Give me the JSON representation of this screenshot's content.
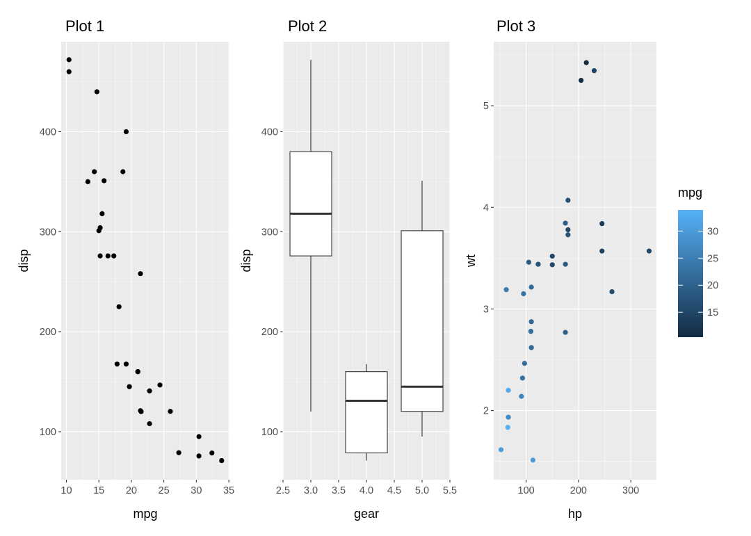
{
  "chart_data": [
    {
      "type": "scatter",
      "title": "Plot 1",
      "xlabel": "mpg",
      "ylabel": "disp",
      "xlim": [
        9.2,
        35.1
      ],
      "ylim": [
        52,
        490
      ],
      "xticks": [
        10,
        15,
        20,
        25,
        30,
        35
      ],
      "yticks": [
        100,
        200,
        300,
        400
      ],
      "color": "#000000",
      "points": [
        [
          21.0,
          160
        ],
        [
          21.0,
          160
        ],
        [
          22.8,
          108
        ],
        [
          21.4,
          258
        ],
        [
          18.7,
          360
        ],
        [
          18.1,
          225
        ],
        [
          14.3,
          360
        ],
        [
          24.4,
          146.7
        ],
        [
          22.8,
          140.8
        ],
        [
          19.2,
          167.6
        ],
        [
          17.8,
          167.6
        ],
        [
          16.4,
          275.8
        ],
        [
          17.3,
          275.8
        ],
        [
          15.2,
          275.8
        ],
        [
          10.4,
          472
        ],
        [
          10.4,
          460
        ],
        [
          14.7,
          440
        ],
        [
          32.4,
          78.7
        ],
        [
          30.4,
          75.7
        ],
        [
          33.9,
          71.1
        ],
        [
          21.5,
          120.1
        ],
        [
          15.5,
          318
        ],
        [
          15.2,
          304
        ],
        [
          13.3,
          350
        ],
        [
          19.2,
          400
        ],
        [
          27.3,
          79
        ],
        [
          26.0,
          120.3
        ],
        [
          30.4,
          95.1
        ],
        [
          15.8,
          351
        ],
        [
          19.7,
          145
        ],
        [
          15.0,
          301
        ],
        [
          21.4,
          121
        ]
      ]
    },
    {
      "type": "box",
      "title": "Plot 2",
      "xlabel": "gear",
      "ylabel": "disp",
      "xlim": [
        2.5,
        5.5
      ],
      "ylim": [
        52,
        490
      ],
      "xticks": [
        "2.5",
        "3.0",
        "3.5",
        "4.0",
        "4.5",
        "5.0",
        "5.5"
      ],
      "yticks": [
        100,
        200,
        300,
        400
      ],
      "boxes": [
        {
          "group": 3,
          "min": 120.1,
          "q1": 275.8,
          "median": 318,
          "q3": 380,
          "max": 472
        },
        {
          "group": 4,
          "min": 71.1,
          "q1": 78.8,
          "median": 130.9,
          "q3": 160,
          "max": 167.6
        },
        {
          "group": 5,
          "min": 95.1,
          "q1": 120.3,
          "median": 145,
          "q3": 301,
          "max": 351
        }
      ]
    },
    {
      "type": "scatter",
      "title": "Plot 3",
      "xlabel": "hp",
      "ylabel": "wt",
      "xlim": [
        38,
        349
      ],
      "ylim": [
        1.32,
        5.63
      ],
      "xticks": [
        100,
        200,
        300
      ],
      "yticks": [
        2,
        3,
        4,
        5
      ],
      "color_by": "mpg",
      "points": [
        {
          "hp": 110,
          "wt": 2.62,
          "mpg": 21.0
        },
        {
          "hp": 110,
          "wt": 2.875,
          "mpg": 21.0
        },
        {
          "hp": 93,
          "wt": 2.32,
          "mpg": 22.8
        },
        {
          "hp": 110,
          "wt": 3.215,
          "mpg": 21.4
        },
        {
          "hp": 175,
          "wt": 3.44,
          "mpg": 18.7
        },
        {
          "hp": 105,
          "wt": 3.46,
          "mpg": 18.1
        },
        {
          "hp": 245,
          "wt": 3.57,
          "mpg": 14.3
        },
        {
          "hp": 62,
          "wt": 3.19,
          "mpg": 24.4
        },
        {
          "hp": 95,
          "wt": 3.15,
          "mpg": 22.8
        },
        {
          "hp": 123,
          "wt": 3.44,
          "mpg": 19.2
        },
        {
          "hp": 123,
          "wt": 3.44,
          "mpg": 17.8
        },
        {
          "hp": 180,
          "wt": 4.07,
          "mpg": 16.4
        },
        {
          "hp": 180,
          "wt": 3.73,
          "mpg": 17.3
        },
        {
          "hp": 180,
          "wt": 3.78,
          "mpg": 15.2
        },
        {
          "hp": 205,
          "wt": 5.25,
          "mpg": 10.4
        },
        {
          "hp": 215,
          "wt": 5.424,
          "mpg": 10.4
        },
        {
          "hp": 230,
          "wt": 5.345,
          "mpg": 14.7
        },
        {
          "hp": 66,
          "wt": 2.2,
          "mpg": 32.4
        },
        {
          "hp": 52,
          "wt": 1.615,
          "mpg": 30.4
        },
        {
          "hp": 65,
          "wt": 1.835,
          "mpg": 33.9
        },
        {
          "hp": 97,
          "wt": 2.465,
          "mpg": 21.5
        },
        {
          "hp": 150,
          "wt": 3.52,
          "mpg": 15.5
        },
        {
          "hp": 150,
          "wt": 3.435,
          "mpg": 15.2
        },
        {
          "hp": 245,
          "wt": 3.84,
          "mpg": 13.3
        },
        {
          "hp": 175,
          "wt": 3.845,
          "mpg": 19.2
        },
        {
          "hp": 66,
          "wt": 1.935,
          "mpg": 27.3
        },
        {
          "hp": 91,
          "wt": 2.14,
          "mpg": 26.0
        },
        {
          "hp": 113,
          "wt": 1.513,
          "mpg": 30.4
        },
        {
          "hp": 264,
          "wt": 3.17,
          "mpg": 15.8
        },
        {
          "hp": 175,
          "wt": 2.77,
          "mpg": 19.7
        },
        {
          "hp": 335,
          "wt": 3.57,
          "mpg": 15.0
        },
        {
          "hp": 109,
          "wt": 2.78,
          "mpg": 21.4
        }
      ],
      "legend": {
        "title": "mpg",
        "position": "right",
        "range": [
          10.4,
          33.9
        ],
        "ticks": [
          15,
          20,
          25,
          30
        ],
        "low_color": "#132b43",
        "high_color": "#56b1f7"
      }
    }
  ]
}
